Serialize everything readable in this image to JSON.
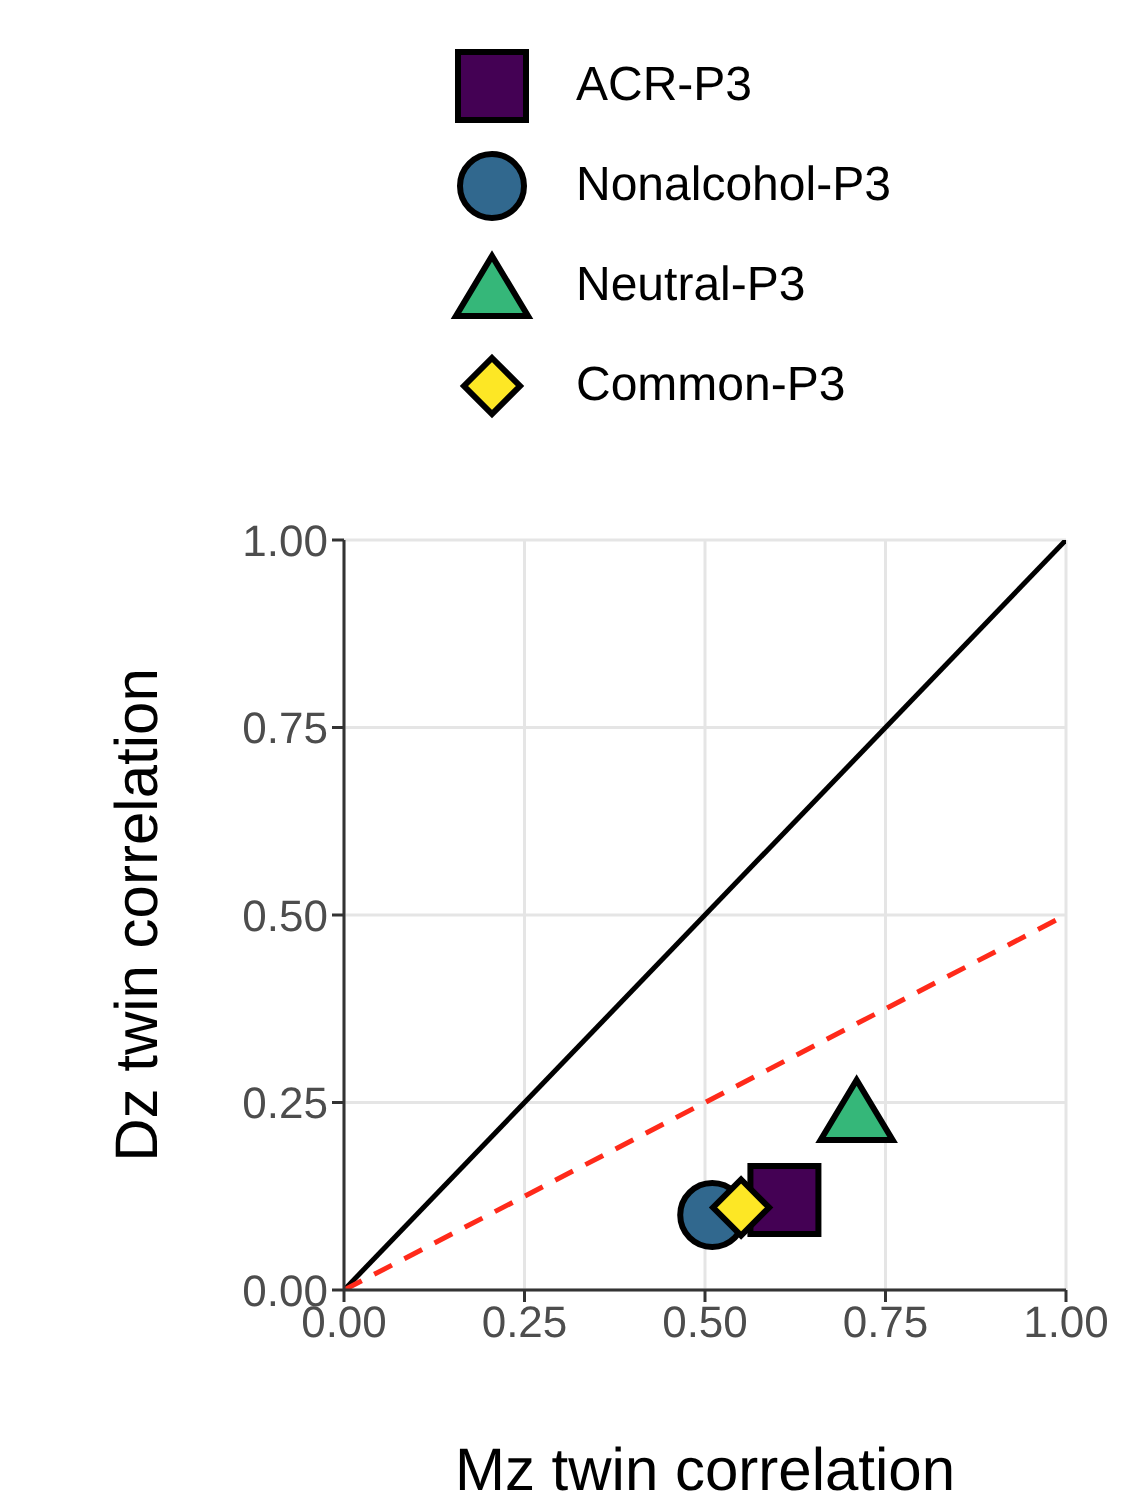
{
  "chart_data": {
    "type": "scatter",
    "xlabel": "Mz twin correlation",
    "ylabel": "Dz twin correlation",
    "xlim": [
      0,
      1
    ],
    "ylim": [
      0,
      1
    ],
    "xticks": [
      {
        "value": 0,
        "label": "0.00"
      },
      {
        "value": 0.25,
        "label": "0.25"
      },
      {
        "value": 0.5,
        "label": "0.50"
      },
      {
        "value": 0.75,
        "label": "0.75"
      },
      {
        "value": 1,
        "label": "1.00"
      }
    ],
    "yticks": [
      {
        "value": 0,
        "label": "0.00"
      },
      {
        "value": 0.25,
        "label": "0.25"
      },
      {
        "value": 0.5,
        "label": "0.50"
      },
      {
        "value": 0.75,
        "label": "0.75"
      },
      {
        "value": 1,
        "label": "1.00"
      }
    ],
    "grid": true,
    "legend": "top",
    "series": [
      {
        "type": "line",
        "x": [
          0,
          1
        ],
        "values": [
          0,
          1
        ],
        "color": "#000000",
        "line_style": "solid",
        "marker": "none"
      },
      {
        "type": "line",
        "x": [
          0,
          1
        ],
        "values": [
          0,
          0.5
        ],
        "color": "#ff2a1a",
        "line_style": "dashed",
        "marker": "none"
      },
      {
        "name": "ACR-P3",
        "x": [
          0.61
        ],
        "values": [
          0.12
        ],
        "color": "#440154",
        "marker": "square"
      },
      {
        "name": "Nonalcohol-P3",
        "x": [
          0.51
        ],
        "values": [
          0.1
        ],
        "color": "#31688e",
        "marker": "circle"
      },
      {
        "name": "Neutral-P3",
        "x": [
          0.71
        ],
        "values": [
          0.24
        ],
        "color": "#35b779",
        "marker": "triangle"
      },
      {
        "name": "Common-P3",
        "x": [
          0.55
        ],
        "values": [
          0.11
        ],
        "color": "#fde725",
        "marker": "diamond"
      }
    ]
  }
}
